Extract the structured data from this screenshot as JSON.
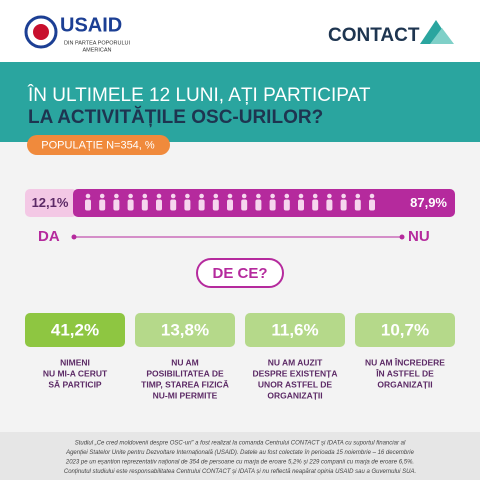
{
  "header": {
    "usaid_logo": "USAID",
    "usaid_tagline": [
      "DIN PARTEA POPORULUI",
      "AMERICAN"
    ],
    "contact_logo": "CONTACT"
  },
  "question": {
    "line1": "ÎN ULTIMELE 12 LUNI, AȚI PARTICIPAT",
    "line2": "LA ACTIVITĂȚILE OSC-URILOR?",
    "population": "POPULAȚIE N=354, %"
  },
  "answer_bar": {
    "yes_value": "12,1%",
    "no_value": "87,9%",
    "yes_label": "DA",
    "no_label": "NU"
  },
  "reasons_title": "DE CE?",
  "reasons": [
    {
      "value": "41,2%",
      "text": [
        "NIMENI",
        "NU MI-A CERUT",
        "SĂ PARTICIP"
      ]
    },
    {
      "value": "13,8%",
      "text": [
        "NU AM",
        "POSIBILITATEA DE",
        "TIMP, STAREA FIZICĂ",
        "NU-MI PERMITE"
      ]
    },
    {
      "value": "11,6%",
      "text": [
        "NU AM AUZIT",
        "DESPRE EXISTENȚA",
        "UNOR ASTFEL DE",
        "ORGANIZAȚII"
      ]
    },
    {
      "value": "10,7%",
      "text": [
        "NU AM ÎNCREDERE",
        "ÎN ASTFEL DE",
        "ORGANIZAȚII"
      ]
    }
  ],
  "footer": [
    "Studiul „Ce cred moldovenii despre OSC-uri” a fost realizat la comanda Centrului CONTACT și IDATA cu suportul financiar al",
    "Agenției Statelor Unite pentru Dezvoltare Internațională (USAID). Datele au fost colectate în perioada 15 noiembrie – 16 decembrie",
    "2023 pe un eșantion reprezentativ național de 354 de persoane cu marja de eroare 5,2% și 229 companii cu marja de eroare 6,5%.",
    "Conținutul studiului este responsabilitatea Centrului CONTACT și IDATA și nu reflectă neapărat opinia USAID sau a Guvernului SUA."
  ]
}
